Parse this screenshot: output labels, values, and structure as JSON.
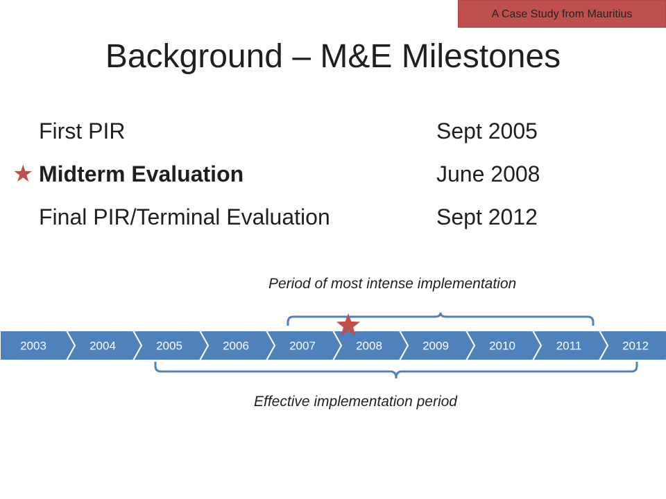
{
  "badge": {
    "text": "A Case Study from Mauritius"
  },
  "slide": {
    "title": "Background –  M&E Milestones"
  },
  "milestones": [
    {
      "name": "First PIR",
      "date": "Sept 2005",
      "bold": false,
      "starred": false
    },
    {
      "name": "Midterm Evaluation",
      "date": "June 2008",
      "bold": true,
      "starred": true
    },
    {
      "name": "Final PIR/Terminal Evaluation",
      "date": "Sept 2012",
      "bold": false,
      "starred": false
    }
  ],
  "timeline": {
    "years": [
      "2003",
      "2004",
      "2005",
      "2006",
      "2007",
      "2008",
      "2009",
      "2010",
      "2011",
      "2012"
    ],
    "top_bracket_label": "Period of most intense implementation",
    "top_bracket_range": [
      "2007",
      "2012"
    ],
    "bottom_bracket_label": "Effective implementation period",
    "bottom_bracket_range": [
      "2005",
      "2012"
    ],
    "star_year": "2008"
  },
  "colors": {
    "badge_bg": "#c0504d",
    "star": "#c0504d",
    "chevron_fill": "#4f81bd",
    "chevron_stroke": "#ffffff",
    "bracket": "#4f81bd"
  },
  "icons": {
    "star": "star-icon"
  }
}
